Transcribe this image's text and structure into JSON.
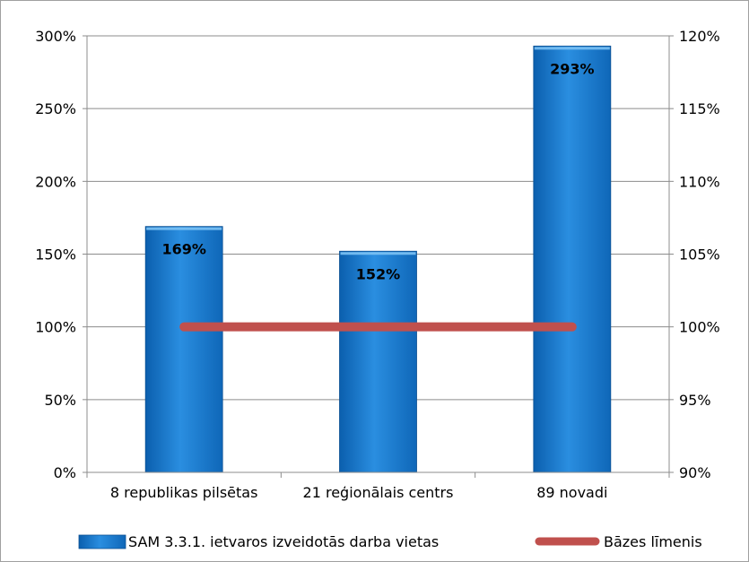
{
  "chart_data": {
    "type": "bar",
    "categories": [
      "8 republikas pilsētas",
      "21 reģionālais centrs",
      "89 novadi"
    ],
    "series": [
      {
        "name": "SAM 3.3.1. ietvaros izveidotās darba vietas",
        "type": "bar",
        "axis": "left",
        "values": [
          169,
          152,
          293
        ],
        "data_labels": [
          "169%",
          "152%",
          "293%"
        ],
        "color": "#1a7fd4"
      },
      {
        "name": "Bāzes līmenis",
        "type": "line",
        "axis": "right",
        "values": [
          100,
          100,
          100
        ],
        "color": "#c0504d"
      }
    ],
    "y_left": {
      "min": 0,
      "max": 300,
      "step": 50,
      "tick_labels": [
        "0%",
        "50%",
        "100%",
        "150%",
        "200%",
        "250%",
        "300%"
      ]
    },
    "y_right": {
      "min": 90,
      "max": 120,
      "step": 5,
      "tick_labels": [
        "90%",
        "95%",
        "100%",
        "105%",
        "110%",
        "115%",
        "120%"
      ]
    },
    "grid": true,
    "legend": "bottom"
  }
}
